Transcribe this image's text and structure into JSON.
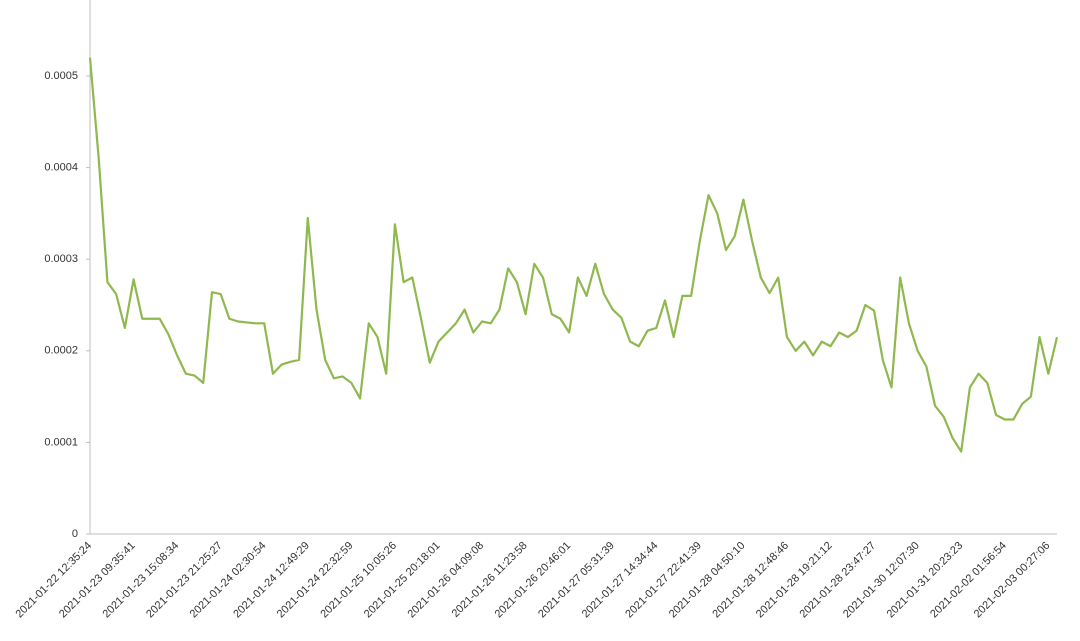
{
  "chart_data": {
    "type": "line",
    "categories": [
      "2021-01-22 12:35:24",
      null,
      null,
      null,
      null,
      "2021-01-23 09:35:41",
      null,
      null,
      null,
      null,
      "2021-01-23 15:08:34",
      null,
      null,
      null,
      null,
      "2021-01-23 21:25:27",
      null,
      null,
      null,
      null,
      "2021-01-24 02:30:54",
      null,
      null,
      null,
      null,
      "2021-01-24 12:49:29",
      null,
      null,
      null,
      null,
      "2021-01-24 22:32:59",
      null,
      null,
      null,
      null,
      "2021-01-25 10:05:26",
      null,
      null,
      null,
      null,
      "2021-01-25 20:18:01",
      null,
      null,
      null,
      null,
      "2021-01-26 04:09:08",
      null,
      null,
      null,
      null,
      "2021-01-26 11:23:58",
      null,
      null,
      null,
      null,
      "2021-01-26 20:46:01",
      null,
      null,
      null,
      null,
      "2021-01-27 05:31:39",
      null,
      null,
      null,
      null,
      "2021-01-27 14:34:44",
      null,
      null,
      null,
      null,
      "2021-01-27 22:41:39",
      null,
      null,
      null,
      null,
      "2021-01-28 04:50:10",
      null,
      null,
      null,
      null,
      "2021-01-28 12:48:46",
      null,
      null,
      null,
      null,
      "2021-01-28 19:21:12",
      null,
      null,
      null,
      null,
      "2021-01-28 23:47:27",
      null,
      null,
      null,
      null,
      "2021-01-30 12:07:30",
      null,
      null,
      null,
      null,
      "2021-01-31 20:23:23",
      null,
      null,
      null,
      null,
      "2021-02-02 01:56:54",
      null,
      null,
      null,
      null,
      "2021-02-03 00:27:06",
      null
    ],
    "values": [
      0.00052,
      0.00041,
      0.000275,
      0.000262,
      0.000225,
      0.000278,
      0.000235,
      0.000235,
      0.000235,
      0.000218,
      0.000195,
      0.000175,
      0.000173,
      0.000165,
      0.000264,
      0.000262,
      0.000235,
      0.000232,
      0.000231,
      0.00023,
      0.00023,
      0.000175,
      0.000185,
      0.000188,
      0.00019,
      0.000345,
      0.000245,
      0.00019,
      0.00017,
      0.000172,
      0.000165,
      0.000148,
      0.00023,
      0.000215,
      0.000175,
      0.000338,
      0.000275,
      0.00028,
      0.000235,
      0.000187,
      0.00021,
      0.00022,
      0.00023,
      0.000245,
      0.00022,
      0.000232,
      0.00023,
      0.000245,
      0.00029,
      0.000275,
      0.00024,
      0.000295,
      0.00028,
      0.00024,
      0.000235,
      0.00022,
      0.00028,
      0.00026,
      0.000295,
      0.000262,
      0.000245,
      0.000236,
      0.00021,
      0.000205,
      0.000222,
      0.000225,
      0.000255,
      0.000215,
      0.00026,
      0.00026,
      0.00032,
      0.00037,
      0.00035,
      0.00031,
      0.000325,
      0.000365,
      0.00032,
      0.00028,
      0.000263,
      0.00028,
      0.000215,
      0.0002,
      0.00021,
      0.000195,
      0.00021,
      0.000205,
      0.00022,
      0.000215,
      0.000222,
      0.00025,
      0.000244,
      0.00019,
      0.00016,
      0.00028,
      0.00023,
      0.0002,
      0.000183,
      0.00014,
      0.000128,
      0.000105,
      9e-05,
      0.00016,
      0.000175,
      0.000165,
      0.00013,
      0.000125,
      0.000125,
      0.000142,
      0.00015,
      0.000215,
      0.000175,
      0.000215
    ],
    "color": "#8fb84f",
    "ylim": [
      0,
      0.000583
    ],
    "yticks": [
      0,
      0.0001,
      0.0002,
      0.0003,
      0.0004,
      0.0005
    ],
    "grid": false
  }
}
